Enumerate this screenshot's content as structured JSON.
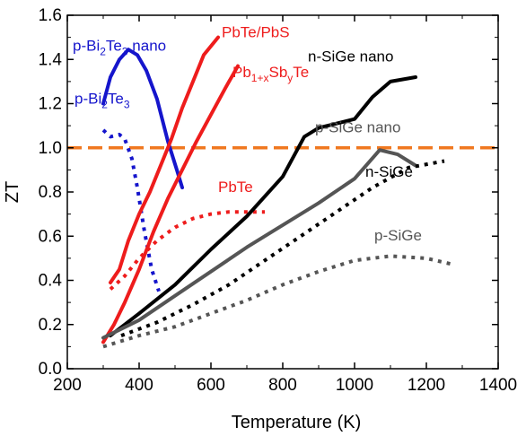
{
  "chart_data": {
    "type": "line",
    "xlabel": "Temperature (K)",
    "ylabel": "ZT",
    "xlim": [
      200,
      1400
    ],
    "ylim": [
      0,
      1.6
    ],
    "x_ticks": [
      "200",
      "400",
      "600",
      "800",
      "1000",
      "1200",
      "1400"
    ],
    "y_ticks": [
      "0.0",
      "0.2",
      "0.4",
      "0.6",
      "0.8",
      "1.0",
      "1.2",
      "1.4",
      "1.6"
    ],
    "grid": false,
    "legend": "none (direct annotations on curves)",
    "reference_line": {
      "y": 1.0,
      "style": "dashed",
      "color": "#f07820"
    },
    "series": [
      {
        "key": "bi2te3-nano",
        "color": "#1515cc",
        "style": "solid",
        "points": [
          [
            300,
            1.2
          ],
          [
            320,
            1.32
          ],
          [
            345,
            1.4
          ],
          [
            370,
            1.445
          ],
          [
            395,
            1.42
          ],
          [
            420,
            1.35
          ],
          [
            450,
            1.22
          ],
          [
            480,
            1.03
          ],
          [
            505,
            0.9
          ],
          [
            520,
            0.82
          ]
        ]
      },
      {
        "key": "bi2te3",
        "color": "#1515cc",
        "style": "dotted",
        "points": [
          [
            300,
            1.08
          ],
          [
            320,
            1.05
          ],
          [
            345,
            1.06
          ],
          [
            360,
            1.04
          ],
          [
            380,
            0.95
          ],
          [
            395,
            0.82
          ],
          [
            415,
            0.62
          ],
          [
            435,
            0.45
          ],
          [
            455,
            0.35
          ]
        ]
      },
      {
        "key": "pbte-pbs",
        "color": "#ee1c1c",
        "style": "solid",
        "points": [
          [
            320,
            0.39
          ],
          [
            345,
            0.45
          ],
          [
            370,
            0.58
          ],
          [
            400,
            0.7
          ],
          [
            430,
            0.8
          ],
          [
            460,
            0.92
          ],
          [
            490,
            1.04
          ],
          [
            520,
            1.18
          ],
          [
            550,
            1.3
          ],
          [
            580,
            1.42
          ],
          [
            620,
            1.5
          ]
        ]
      },
      {
        "key": "pb1xsbyte",
        "color": "#ee1c1c",
        "style": "solid",
        "points": [
          [
            300,
            0.12
          ],
          [
            330,
            0.2
          ],
          [
            360,
            0.3
          ],
          [
            400,
            0.45
          ],
          [
            440,
            0.62
          ],
          [
            480,
            0.77
          ],
          [
            520,
            0.9
          ],
          [
            560,
            1.03
          ],
          [
            600,
            1.15
          ],
          [
            640,
            1.27
          ],
          [
            675,
            1.37
          ]
        ]
      },
      {
        "key": "pbte",
        "color": "#ee1c1c",
        "style": "dotted",
        "points": [
          [
            320,
            0.36
          ],
          [
            360,
            0.42
          ],
          [
            400,
            0.5
          ],
          [
            450,
            0.58
          ],
          [
            500,
            0.64
          ],
          [
            550,
            0.68
          ],
          [
            600,
            0.7
          ],
          [
            650,
            0.71
          ],
          [
            700,
            0.71
          ],
          [
            750,
            0.71
          ]
        ]
      },
      {
        "key": "n-sige-nano",
        "color": "#000000",
        "style": "solid",
        "points": [
          [
            320,
            0.15
          ],
          [
            400,
            0.25
          ],
          [
            500,
            0.38
          ],
          [
            600,
            0.54
          ],
          [
            700,
            0.69
          ],
          [
            800,
            0.87
          ],
          [
            860,
            1.05
          ],
          [
            900,
            1.09
          ],
          [
            1000,
            1.13
          ],
          [
            1050,
            1.23
          ],
          [
            1100,
            1.3
          ],
          [
            1170,
            1.32
          ]
        ]
      },
      {
        "key": "p-sige-nano",
        "color": "#555555",
        "style": "solid",
        "points": [
          [
            300,
            0.14
          ],
          [
            400,
            0.22
          ],
          [
            500,
            0.33
          ],
          [
            600,
            0.44
          ],
          [
            700,
            0.55
          ],
          [
            800,
            0.65
          ],
          [
            900,
            0.75
          ],
          [
            1000,
            0.86
          ],
          [
            1070,
            0.99
          ],
          [
            1120,
            0.97
          ],
          [
            1170,
            0.92
          ]
        ]
      },
      {
        "key": "n-sige",
        "color": "#000000",
        "style": "dotted",
        "points": [
          [
            350,
            0.15
          ],
          [
            450,
            0.21
          ],
          [
            550,
            0.29
          ],
          [
            650,
            0.38
          ],
          [
            750,
            0.49
          ],
          [
            850,
            0.6
          ],
          [
            950,
            0.71
          ],
          [
            1050,
            0.82
          ],
          [
            1150,
            0.91
          ],
          [
            1250,
            0.94
          ]
        ]
      },
      {
        "key": "p-sige",
        "color": "#555555",
        "style": "dotted",
        "points": [
          [
            300,
            0.1
          ],
          [
            400,
            0.15
          ],
          [
            500,
            0.19
          ],
          [
            600,
            0.25
          ],
          [
            700,
            0.31
          ],
          [
            800,
            0.38
          ],
          [
            900,
            0.44
          ],
          [
            1000,
            0.49
          ],
          [
            1100,
            0.51
          ],
          [
            1200,
            0.5
          ],
          [
            1280,
            0.47
          ]
        ]
      }
    ],
    "annotations": [
      {
        "key": "ann-bi2te3-nano",
        "color": "#1515cc",
        "x": 215,
        "y": 1.44,
        "parts": [
          [
            "p-Bi",
            0
          ],
          [
            "2",
            1
          ],
          [
            "Te",
            0
          ],
          [
            "3",
            1
          ],
          [
            " nano",
            0
          ]
        ]
      },
      {
        "key": "ann-bi2te3",
        "color": "#1515cc",
        "x": 220,
        "y": 1.2,
        "parts": [
          [
            "p-Bi",
            0
          ],
          [
            "2",
            1
          ],
          [
            "Te",
            0
          ],
          [
            "3",
            1
          ]
        ]
      },
      {
        "key": "ann-pbte-pbs",
        "color": "#ee1c1c",
        "x": 630,
        "y": 1.5,
        "parts": [
          [
            "PbTe/PbS",
            0
          ]
        ]
      },
      {
        "key": "ann-pb1xsbyte",
        "color": "#ee1c1c",
        "x": 660,
        "y": 1.32,
        "parts": [
          [
            "Pb",
            0
          ],
          [
            "1+x",
            1
          ],
          [
            "Sb",
            0
          ],
          [
            "y",
            1
          ],
          [
            "Te",
            0
          ]
        ]
      },
      {
        "key": "ann-pbte",
        "color": "#ee1c1c",
        "x": 620,
        "y": 0.8,
        "parts": [
          [
            "PbTe",
            0
          ]
        ]
      },
      {
        "key": "ann-n-sige-nano",
        "color": "#000000",
        "x": 870,
        "y": 1.39,
        "parts": [
          [
            "n-SiGe  nano",
            0
          ]
        ]
      },
      {
        "key": "ann-p-sige-nano",
        "color": "#555555",
        "x": 890,
        "y": 1.07,
        "parts": [
          [
            "p-SiGe  nano",
            0
          ]
        ]
      },
      {
        "key": "ann-n-sige",
        "color": "#000000",
        "x": 1030,
        "y": 0.87,
        "parts": [
          [
            "n-SiGe",
            0
          ]
        ]
      },
      {
        "key": "ann-p-sige",
        "color": "#555555",
        "x": 1055,
        "y": 0.58,
        "parts": [
          [
            "p-SiGe",
            0
          ]
        ]
      }
    ]
  }
}
